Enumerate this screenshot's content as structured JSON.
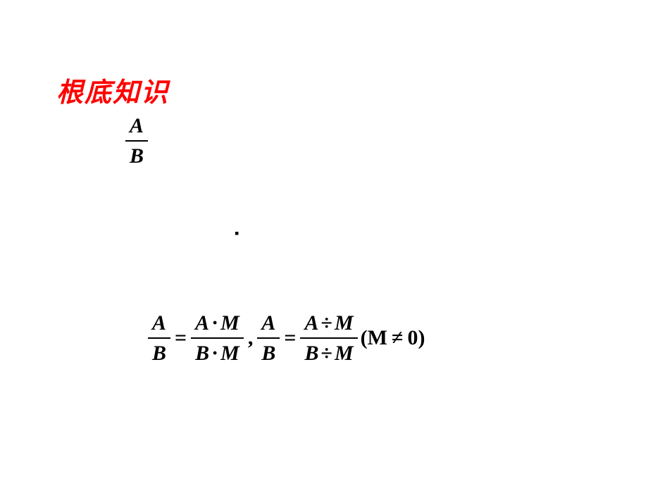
{
  "heading": "根底知识",
  "centerDot": "▪",
  "frac1": {
    "num": "A",
    "den": "B"
  },
  "equation": {
    "lhs1": {
      "num": "A",
      "den": "B"
    },
    "eq1": "=",
    "rhs1": {
      "numL": "A",
      "op1": "·",
      "numR": "M",
      "denL": "B",
      "op2": "·",
      "denR": "M"
    },
    "comma": ",",
    "lhs2": {
      "num": "A",
      "den": "B"
    },
    "eq2": "=",
    "rhs2": {
      "numL": "A",
      "op1": "÷",
      "numR": "M",
      "denL": "B",
      "op2": "÷",
      "denR": "M"
    },
    "cond": {
      "open": "(",
      "var": "M",
      "ne": "≠",
      "zero": "0",
      "close": ")"
    }
  },
  "colors": {
    "heading": "#ff0000",
    "text": "#000000",
    "background": "#ffffff"
  },
  "fonts": {
    "heading_family": "KaiTi",
    "heading_size_pt": 28,
    "math_family": "Times New Roman",
    "math_size_pt": 22,
    "math_weight": "bold",
    "math_style": "italic"
  }
}
